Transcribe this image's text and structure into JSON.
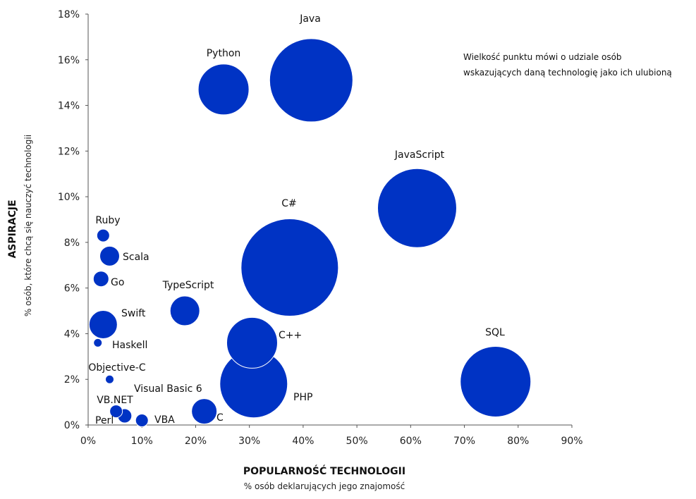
{
  "chart_data": {
    "type": "scatter",
    "subtype": "bubble",
    "xlabel": "POPULARNOŚĆ TECHNOLOGII",
    "xsublabel": "% osób deklarujących jego znajomość",
    "ylabel": "ASPIRACJE",
    "ysublabel": "% osób, które chcą się nauczyć technologii",
    "note_lines": [
      "Wielkość  punktu mówi o udziale osób",
      "wskazujących daną technologię jako ich ulubioną"
    ],
    "xlim": [
      0,
      90
    ],
    "ylim": [
      0,
      18
    ],
    "xticks": [
      "0%",
      "10%",
      "20%",
      "30%",
      "40%",
      "50%",
      "60%",
      "70%",
      "80%",
      "90%"
    ],
    "yticks": [
      "0%",
      "2%",
      "4%",
      "6%",
      "8%",
      "10%",
      "12%",
      "14%",
      "16%",
      "18%"
    ],
    "bubble_color": "#0033c4",
    "points": [
      {
        "name": "Java",
        "x": 41.5,
        "y": 15.1,
        "size": 59
      },
      {
        "name": "Python",
        "x": 25.2,
        "y": 14.7,
        "size": 36
      },
      {
        "name": "JavaScript",
        "x": 61.2,
        "y": 9.5,
        "size": 56
      },
      {
        "name": "C#",
        "x": 37.5,
        "y": 6.9,
        "size": 69
      },
      {
        "name": "SQL",
        "x": 75.8,
        "y": 1.9,
        "size": 50
      },
      {
        "name": "C++",
        "x": 30.5,
        "y": 3.6,
        "size": 36
      },
      {
        "name": "PHP",
        "x": 30.8,
        "y": 1.8,
        "size": 48
      },
      {
        "name": "TypeScript",
        "x": 18.0,
        "y": 5.0,
        "size": 21
      },
      {
        "name": "C",
        "x": 21.6,
        "y": 0.6,
        "size": 18
      },
      {
        "name": "Ruby",
        "x": 2.8,
        "y": 8.3,
        "size": 9
      },
      {
        "name": "Scala",
        "x": 4.0,
        "y": 7.4,
        "size": 14
      },
      {
        "name": "Go",
        "x": 2.4,
        "y": 6.4,
        "size": 11
      },
      {
        "name": "Swift",
        "x": 2.8,
        "y": 4.4,
        "size": 20
      },
      {
        "name": "Haskell",
        "x": 1.8,
        "y": 3.6,
        "size": 6
      },
      {
        "name": "Objective-C",
        "x": 4.0,
        "y": 2.0,
        "size": 6
      },
      {
        "name": "Visual Basic 6",
        "x": 0,
        "y": 0,
        "size": 0
      },
      {
        "name": "VB.NET",
        "x": 5.2,
        "y": 0.6,
        "size": 9
      },
      {
        "name": "Perl",
        "x": 6.8,
        "y": 0.4,
        "size": 10
      },
      {
        "name": "VBA",
        "x": 10.0,
        "y": 0.2,
        "size": 9
      }
    ]
  }
}
